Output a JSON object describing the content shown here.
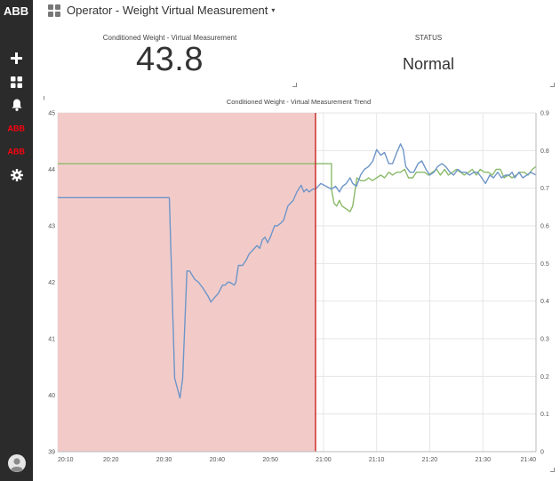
{
  "sidebar": {
    "logo": "ABB",
    "items": [
      {
        "icon": "plus-icon",
        "y": 0
      },
      {
        "icon": "dashboard-grid-icon"
      },
      {
        "icon": "bell-icon"
      },
      {
        "icon": "abb-logo-icon"
      },
      {
        "icon": "abb-logo-icon"
      },
      {
        "icon": "gear-icon"
      }
    ],
    "avatar_icon": "user-avatar-icon"
  },
  "header": {
    "title": "Operator - Weight Virtual Measurement",
    "caret": "▾"
  },
  "kpi": {
    "label": "Conditioned Weight - Virtual Measurement",
    "value": "43.8"
  },
  "status": {
    "label": "STATUS",
    "value": "Normal"
  },
  "colors": {
    "sidebar": "#2b2b2b",
    "abb_red": "#ff000f",
    "history_band": "#f2cbc9",
    "now_line": "#c8302c",
    "blue_series": "#6e95c8",
    "green_series": "#8aba6a",
    "grid": "#e6e6e6"
  },
  "chart_data": {
    "type": "line",
    "title": "Conditioned Weight - Virtual Measurement Trend",
    "x_ticks": [
      "20:10",
      "20:20",
      "20:30",
      "20:40",
      "20:50",
      "21:00",
      "21:10",
      "21:20",
      "21:30",
      "21:40"
    ],
    "x_range_minutes": [
      0,
      90
    ],
    "y_left": {
      "ticks": [
        "39",
        "40",
        "41",
        "42",
        "43",
        "44",
        "45"
      ],
      "range": [
        39,
        45
      ]
    },
    "y_right": {
      "ticks": [
        "0",
        "0.1",
        "0.2",
        "0.3",
        "0.4",
        "0.5",
        "0.6",
        "0.7",
        "0.8",
        "0.9"
      ],
      "range": [
        0,
        0.9
      ]
    },
    "history_end_minute": 48.5,
    "grid": true,
    "series": [
      {
        "color": "blue",
        "axis": "left",
        "points": [
          [
            0,
            43.5
          ],
          [
            20.5,
            43.5
          ],
          [
            21.0,
            43.5
          ],
          [
            22.0,
            40.3
          ],
          [
            23.0,
            39.95
          ],
          [
            23.5,
            40.3
          ],
          [
            24.3,
            42.2
          ],
          [
            24.8,
            42.2
          ],
          [
            25.8,
            42.05
          ],
          [
            26.5,
            42.0
          ],
          [
            27.3,
            41.9
          ],
          [
            28.3,
            41.75
          ],
          [
            28.8,
            41.65
          ],
          [
            29.7,
            41.75
          ],
          [
            30.2,
            41.8
          ],
          [
            31.0,
            41.95
          ],
          [
            31.5,
            41.95
          ],
          [
            32.0,
            42.0
          ],
          [
            32.4,
            42.0
          ],
          [
            33.2,
            41.95
          ],
          [
            33.5,
            42.0
          ],
          [
            34.0,
            42.3
          ],
          [
            34.8,
            42.3
          ],
          [
            35.5,
            42.4
          ],
          [
            36.0,
            42.5
          ],
          [
            37.0,
            42.6
          ],
          [
            37.5,
            42.65
          ],
          [
            38.0,
            42.6
          ],
          [
            38.5,
            42.75
          ],
          [
            39.0,
            42.8
          ],
          [
            39.5,
            42.7
          ],
          [
            40.0,
            42.8
          ],
          [
            40.8,
            43.0
          ],
          [
            41.3,
            43.0
          ],
          [
            42.0,
            43.05
          ],
          [
            42.5,
            43.1
          ],
          [
            43.3,
            43.35
          ],
          [
            44.3,
            43.45
          ],
          [
            45.0,
            43.6
          ],
          [
            45.8,
            43.72
          ],
          [
            46.3,
            43.6
          ],
          [
            46.8,
            43.65
          ],
          [
            47.3,
            43.6
          ],
          [
            48.0,
            43.65
          ],
          [
            48.5,
            43.65
          ],
          [
            49.5,
            43.75
          ],
          [
            50.5,
            43.7
          ],
          [
            51.5,
            43.65
          ],
          [
            52.3,
            43.7
          ],
          [
            53.0,
            43.6
          ],
          [
            53.6,
            43.7
          ],
          [
            54.3,
            43.75
          ],
          [
            55.0,
            43.85
          ],
          [
            55.5,
            43.75
          ],
          [
            56.2,
            43.7
          ],
          [
            57.0,
            43.9
          ],
          [
            57.7,
            44.0
          ],
          [
            58.5,
            44.05
          ],
          [
            59.3,
            44.15
          ],
          [
            60.0,
            44.35
          ],
          [
            60.8,
            44.25
          ],
          [
            61.5,
            44.3
          ],
          [
            62.3,
            44.1
          ],
          [
            63.0,
            44.1
          ],
          [
            63.8,
            44.3
          ],
          [
            64.5,
            44.45
          ],
          [
            65.0,
            44.35
          ],
          [
            65.5,
            44.05
          ],
          [
            66.3,
            43.95
          ],
          [
            67.0,
            43.95
          ],
          [
            67.8,
            44.1
          ],
          [
            68.5,
            44.15
          ],
          [
            69.3,
            44.0
          ],
          [
            70.0,
            43.9
          ],
          [
            70.8,
            43.95
          ],
          [
            71.5,
            44.05
          ],
          [
            72.3,
            44.1
          ],
          [
            73.0,
            44.05
          ],
          [
            73.8,
            43.95
          ],
          [
            74.5,
            43.9
          ],
          [
            75.3,
            44.0
          ],
          [
            76.0,
            43.95
          ],
          [
            76.8,
            43.95
          ],
          [
            77.5,
            43.9
          ],
          [
            78.3,
            43.95
          ],
          [
            79.0,
            43.95
          ],
          [
            79.8,
            43.85
          ],
          [
            80.5,
            43.75
          ],
          [
            81.3,
            43.9
          ],
          [
            82.0,
            43.85
          ],
          [
            82.8,
            43.95
          ],
          [
            83.5,
            43.85
          ],
          [
            84.3,
            43.9
          ],
          [
            85.0,
            43.9
          ],
          [
            85.5,
            43.95
          ],
          [
            86.0,
            43.85
          ],
          [
            86.8,
            43.95
          ],
          [
            87.5,
            43.85
          ],
          [
            88.3,
            43.9
          ],
          [
            89.0,
            43.95
          ],
          [
            90,
            43.9
          ]
        ]
      },
      {
        "color": "green",
        "axis": "left",
        "points": [
          [
            0,
            44.1
          ],
          [
            51.5,
            44.1
          ],
          [
            51.5,
            43.65
          ],
          [
            52.0,
            43.4
          ],
          [
            52.5,
            43.35
          ],
          [
            53.0,
            43.45
          ],
          [
            53.5,
            43.35
          ],
          [
            54.3,
            43.3
          ],
          [
            55.0,
            43.25
          ],
          [
            55.5,
            43.35
          ],
          [
            56.3,
            43.85
          ],
          [
            57.0,
            43.8
          ],
          [
            57.8,
            43.8
          ],
          [
            58.5,
            43.85
          ],
          [
            59.2,
            43.8
          ],
          [
            60.0,
            43.85
          ],
          [
            60.8,
            43.9
          ],
          [
            61.5,
            43.85
          ],
          [
            62.3,
            43.95
          ],
          [
            63.0,
            43.9
          ],
          [
            63.8,
            43.95
          ],
          [
            64.5,
            43.95
          ],
          [
            65.3,
            44.0
          ],
          [
            66.0,
            43.85
          ],
          [
            66.8,
            43.85
          ],
          [
            67.5,
            43.95
          ],
          [
            68.3,
            43.95
          ],
          [
            69.0,
            43.95
          ],
          [
            69.8,
            43.9
          ],
          [
            70.5,
            43.95
          ],
          [
            71.3,
            44.0
          ],
          [
            72.0,
            43.9
          ],
          [
            72.8,
            44.0
          ],
          [
            73.5,
            43.9
          ],
          [
            74.3,
            43.95
          ],
          [
            75.0,
            44.0
          ],
          [
            75.8,
            43.95
          ],
          [
            76.5,
            43.9
          ],
          [
            77.3,
            43.95
          ],
          [
            78.0,
            44.0
          ],
          [
            78.8,
            43.9
          ],
          [
            79.5,
            44.0
          ],
          [
            80.3,
            43.95
          ],
          [
            81.0,
            43.95
          ],
          [
            81.8,
            43.9
          ],
          [
            82.5,
            44.0
          ],
          [
            83.3,
            44.0
          ],
          [
            84.0,
            43.85
          ],
          [
            84.8,
            43.9
          ],
          [
            85.5,
            43.85
          ],
          [
            86.3,
            43.9
          ],
          [
            87.0,
            43.95
          ],
          [
            87.8,
            43.95
          ],
          [
            88.5,
            43.9
          ],
          [
            89.3,
            44.0
          ],
          [
            90,
            44.05
          ]
        ]
      }
    ]
  }
}
